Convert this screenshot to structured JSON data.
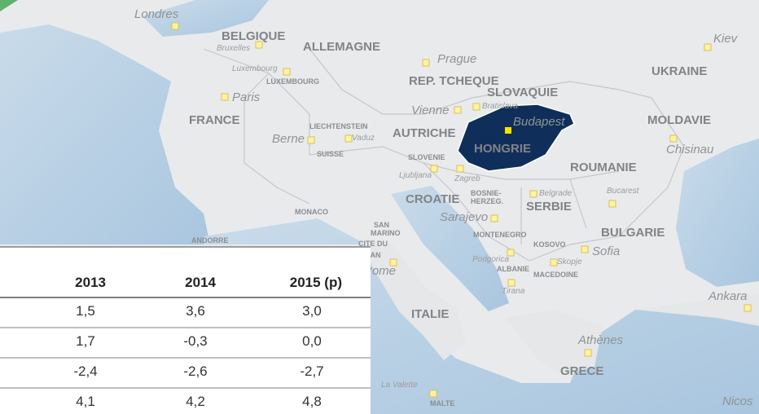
{
  "map": {
    "labels": [
      "Londres",
      "BELGIQUE",
      "Bruxelles",
      "ALLEMAGNE",
      "Prague",
      "Kiev",
      "Luxembourg",
      "LUXEMBOURG",
      "REP. TCHEQUE",
      "UKRAINE",
      "Paris",
      "SLOVAQUIE",
      "FRANCE",
      "Vienne",
      "Bratislava",
      "Budapest",
      "MOLDAVIE",
      "LIECHTENSTEIN",
      "Vaduz",
      "Berne",
      "AUTRICHE",
      "HONGRIE",
      "Chisinau",
      "SUISSE",
      "SLOVENIE",
      "ROUMANIE",
      "Ljubljana",
      "Zagreb",
      "CROATIE",
      "BOSNIE-",
      "HERZEG.",
      "Belgrade",
      "SERBIE",
      "Bucarest",
      "Sarajevo",
      "MONACO",
      "SAN",
      "MARINO",
      "MONTENEGRO",
      "BULGARIE",
      "ANDORRE",
      "CITE DU",
      "CAN",
      "Podgorica",
      "KOSOVO",
      "Sofia",
      "Skopje",
      "ALBANIE",
      "MACEDOINE",
      "Rome",
      "Tirana",
      "Ankara",
      "ITALIE",
      "Athènes",
      "GRECE",
      "La Valette",
      "MALTE",
      "Nicos"
    ]
  },
  "table": {
    "header": [
      "2013",
      "2014",
      "2015 (p)"
    ],
    "rows": [
      [
        "1,5",
        "3,6",
        "3,0"
      ],
      [
        "1,7",
        "-0,3",
        "0,0"
      ],
      [
        "-2,4",
        "-2,6",
        "-2,7"
      ],
      [
        "4,1",
        "4,2",
        "4,8"
      ]
    ]
  }
}
